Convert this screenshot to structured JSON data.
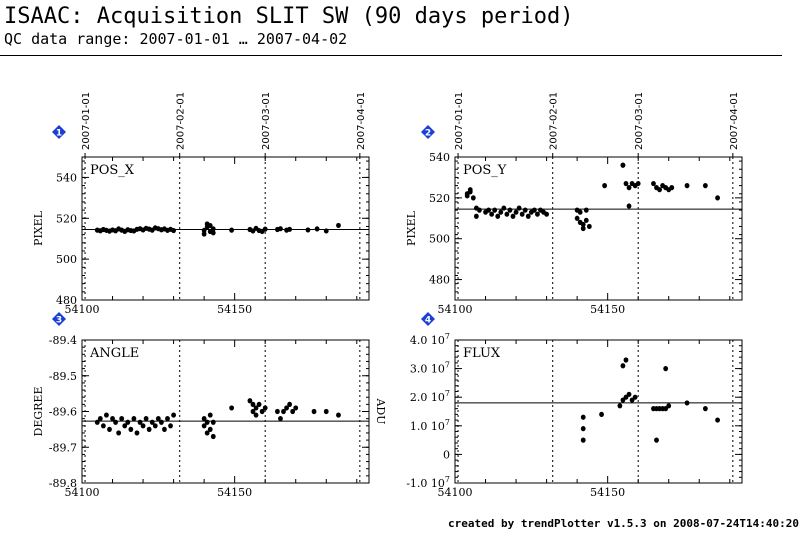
{
  "header": {
    "title": "ISAAC: Acquisition SLIT SW (90 days period)",
    "subtitle": "QC data range: 2007-01-01 … 2007-04-02"
  },
  "footer": "created by trendPlotter v1.5.3 on 2008-07-24T14:40:20",
  "colors": {
    "badge": "#1a3fd6",
    "points": "#000000"
  },
  "date_ticks": [
    {
      "mjd": 54101,
      "label": "2007-01-01"
    },
    {
      "mjd": 54132,
      "label": "2007-02-01"
    },
    {
      "mjd": 54160,
      "label": "2007-03-01"
    },
    {
      "mjd": 54191,
      "label": "2007-04-01"
    }
  ],
  "chart_data": [
    {
      "type": "scatter",
      "badge": "1",
      "title": "POS_X",
      "ylabel": "PIXEL",
      "xlim": [
        54100,
        54194
      ],
      "ylim": [
        480,
        550
      ],
      "xticks": [
        54100,
        54150
      ],
      "yticks": [
        480,
        500,
        520,
        540
      ],
      "reference_line": 514.5,
      "points": [
        [
          54105,
          514.2
        ],
        [
          54106,
          513.9
        ],
        [
          54107,
          514.5
        ],
        [
          54108,
          514.1
        ],
        [
          54109,
          513.7
        ],
        [
          54110,
          514.3
        ],
        [
          54111,
          513.9
        ],
        [
          54112,
          514.8
        ],
        [
          54113,
          514.2
        ],
        [
          54114,
          513.6
        ],
        [
          54115,
          514.4
        ],
        [
          54116,
          514.0
        ],
        [
          54117,
          513.8
        ],
        [
          54118,
          514.6
        ],
        [
          54119,
          514.9
        ],
        [
          54120,
          514.3
        ],
        [
          54121,
          515.1
        ],
        [
          54122,
          514.7
        ],
        [
          54123,
          514.2
        ],
        [
          54124,
          515.3
        ],
        [
          54125,
          514.9
        ],
        [
          54126,
          514.4
        ],
        [
          54127,
          514.8
        ],
        [
          54128,
          514.1
        ],
        [
          54129,
          514.6
        ],
        [
          54130,
          514.0
        ],
        [
          54140,
          512.3
        ],
        [
          54140,
          514.1
        ],
        [
          54141,
          515.8
        ],
        [
          54141,
          517.2
        ],
        [
          54142,
          513.5
        ],
        [
          54142,
          516.4
        ],
        [
          54143,
          514.8
        ],
        [
          54143,
          512.9
        ],
        [
          54149,
          514.2
        ],
        [
          54155,
          514.5
        ],
        [
          54156,
          513.8
        ],
        [
          54157,
          515.1
        ],
        [
          54158,
          514.0
        ],
        [
          54159,
          513.6
        ],
        [
          54160,
          514.7
        ],
        [
          54164,
          514.5
        ],
        [
          54165,
          514.9
        ],
        [
          54167,
          514.2
        ],
        [
          54168,
          514.6
        ],
        [
          54174,
          514.3
        ],
        [
          54177,
          514.8
        ],
        [
          54180,
          513.8
        ],
        [
          54184,
          516.5
        ]
      ]
    },
    {
      "type": "scatter",
      "badge": "2",
      "title": "POS_Y",
      "ylabel": "PIXEL",
      "xlim": [
        54100,
        54194
      ],
      "ylim": [
        470,
        540
      ],
      "xticks": [
        54100,
        54150
      ],
      "yticks": [
        480,
        500,
        520,
        540
      ],
      "reference_line": 514.5,
      "points": [
        [
          54104,
          522
        ],
        [
          54104,
          521
        ],
        [
          54105,
          523
        ],
        [
          54105,
          524
        ],
        [
          54106,
          520
        ],
        [
          54107,
          511
        ],
        [
          54107,
          515
        ],
        [
          54108,
          514
        ],
        [
          54110,
          513
        ],
        [
          54111,
          514
        ],
        [
          54112,
          512
        ],
        [
          54113,
          514
        ],
        [
          54114,
          511
        ],
        [
          54115,
          513
        ],
        [
          54116,
          515
        ],
        [
          54117,
          512
        ],
        [
          54118,
          514
        ],
        [
          54119,
          511
        ],
        [
          54120,
          513
        ],
        [
          54121,
          515
        ],
        [
          54122,
          512
        ],
        [
          54123,
          514
        ],
        [
          54124,
          511
        ],
        [
          54125,
          513
        ],
        [
          54126,
          514
        ],
        [
          54127,
          512
        ],
        [
          54128,
          514
        ],
        [
          54129,
          513
        ],
        [
          54130,
          512
        ],
        [
          54140,
          514
        ],
        [
          54140,
          510
        ],
        [
          54141,
          508
        ],
        [
          54141,
          513
        ],
        [
          54142,
          505
        ],
        [
          54142,
          507
        ],
        [
          54143,
          514
        ],
        [
          54143,
          509
        ],
        [
          54144,
          506
        ],
        [
          54149,
          526
        ],
        [
          54155,
          536
        ],
        [
          54155,
          536
        ],
        [
          54156,
          527
        ],
        [
          54157,
          516
        ],
        [
          54157,
          525
        ],
        [
          54158,
          527
        ],
        [
          54159,
          526
        ],
        [
          54160,
          527
        ],
        [
          54165,
          527
        ],
        [
          54166,
          525
        ],
        [
          54167,
          524
        ],
        [
          54168,
          526
        ],
        [
          54169,
          525
        ],
        [
          54170,
          524
        ],
        [
          54171,
          525
        ],
        [
          54176,
          526
        ],
        [
          54182,
          526
        ],
        [
          54186,
          520
        ]
      ]
    },
    {
      "type": "scatter",
      "badge": "3",
      "title": "ANGLE",
      "ylabel": "DEGREE",
      "xlim": [
        54100,
        54194
      ],
      "ylim": [
        -89.8,
        -89.4
      ],
      "xticks": [
        54100,
        54150
      ],
      "yticks": [
        -89.8,
        -89.7,
        -89.6,
        -89.5,
        -89.4
      ],
      "reference_line": -89.627,
      "points": [
        [
          54105,
          -89.63
        ],
        [
          54106,
          -89.62
        ],
        [
          54107,
          -89.64
        ],
        [
          54108,
          -89.61
        ],
        [
          54109,
          -89.65
        ],
        [
          54110,
          -89.62
        ],
        [
          54111,
          -89.63
        ],
        [
          54112,
          -89.66
        ],
        [
          54113,
          -89.62
        ],
        [
          54114,
          -89.64
        ],
        [
          54115,
          -89.63
        ],
        [
          54116,
          -89.65
        ],
        [
          54117,
          -89.62
        ],
        [
          54118,
          -89.66
        ],
        [
          54119,
          -89.63
        ],
        [
          54120,
          -89.64
        ],
        [
          54121,
          -89.62
        ],
        [
          54122,
          -89.65
        ],
        [
          54123,
          -89.63
        ],
        [
          54124,
          -89.64
        ],
        [
          54125,
          -89.62
        ],
        [
          54126,
          -89.63
        ],
        [
          54127,
          -89.65
        ],
        [
          54128,
          -89.62
        ],
        [
          54129,
          -89.64
        ],
        [
          54130,
          -89.61
        ],
        [
          54140,
          -89.62
        ],
        [
          54140,
          -89.64
        ],
        [
          54141,
          -89.63
        ],
        [
          54141,
          -89.66
        ],
        [
          54142,
          -89.61
        ],
        [
          54142,
          -89.65
        ],
        [
          54143,
          -89.67
        ],
        [
          54143,
          -89.63
        ],
        [
          54149,
          -89.59
        ],
        [
          54155,
          -89.57
        ],
        [
          54156,
          -89.58
        ],
        [
          54156,
          -89.6
        ],
        [
          54157,
          -89.59
        ],
        [
          54157,
          -89.61
        ],
        [
          54158,
          -89.58
        ],
        [
          54159,
          -89.6
        ],
        [
          54160,
          -89.59
        ],
        [
          54164,
          -89.6
        ],
        [
          54165,
          -89.62
        ],
        [
          54166,
          -89.6
        ],
        [
          54167,
          -89.59
        ],
        [
          54168,
          -89.58
        ],
        [
          54169,
          -89.6
        ],
        [
          54170,
          -89.59
        ],
        [
          54176,
          -89.6
        ],
        [
          54180,
          -89.6
        ],
        [
          54184,
          -89.61
        ]
      ]
    },
    {
      "type": "scatter",
      "badge": "4",
      "title": "FLUX",
      "ylabel": "ADU",
      "xlim": [
        54100,
        54194
      ],
      "ylim": [
        -10000000.0,
        40000000.0
      ],
      "xticks": [
        54100,
        54150
      ],
      "yticks": [
        -10000000.0,
        0,
        10000000.0,
        20000000.0,
        30000000.0,
        40000000.0
      ],
      "ytick_labels": [
        "-1.0 10⁷",
        "0",
        "1.0 10⁷",
        "2.0 10⁷",
        "3.0 10⁷",
        "4.0 10⁷"
      ],
      "reference_line": 18000000.0,
      "points": [
        [
          54142,
          13000000.0
        ],
        [
          54142,
          9000000.0
        ],
        [
          54142,
          5000000.0
        ],
        [
          54148,
          14000000.0
        ],
        [
          54154,
          17000000.0
        ],
        [
          54155,
          19000000.0
        ],
        [
          54155,
          31000000.0
        ],
        [
          54156,
          33000000.0
        ],
        [
          54156,
          20000000.0
        ],
        [
          54157,
          21000000.0
        ],
        [
          54158,
          19000000.0
        ],
        [
          54159,
          20000000.0
        ],
        [
          54165,
          16000000.0
        ],
        [
          54166,
          5000000.0
        ],
        [
          54166,
          16000000.0
        ],
        [
          54167,
          16000000.0
        ],
        [
          54168,
          16000000.0
        ],
        [
          54169,
          16000000.0
        ],
        [
          54169,
          30000000.0
        ],
        [
          54170,
          17000000.0
        ],
        [
          54176,
          18000000.0
        ],
        [
          54182,
          16000000.0
        ],
        [
          54186,
          12000000.0
        ]
      ]
    }
  ]
}
